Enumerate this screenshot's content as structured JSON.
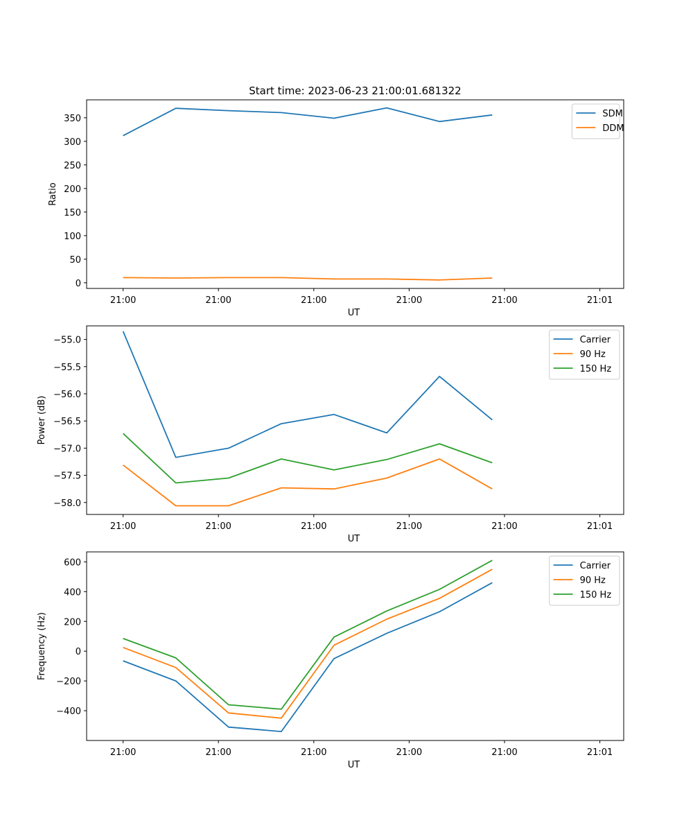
{
  "figure_title": "Start time: 2023-06-23 21:00:01.681322",
  "chart_data": [
    {
      "type": "line",
      "xlabel": "UT",
      "ylabel": "Ratio",
      "x_tick_labels": [
        "21:00",
        "21:00",
        "21:00",
        "21:00",
        "21:00",
        "21:01"
      ],
      "y_ticks": [
        0,
        50,
        100,
        150,
        200,
        250,
        300,
        350
      ],
      "y_tick_labels": [
        "0",
        "50",
        "100",
        "150",
        "200",
        "250",
        "300",
        "350"
      ],
      "xlim": [
        -0.0765,
        1.05
      ],
      "ylim": [
        -12,
        388
      ],
      "x": [
        0,
        0.1106,
        0.2212,
        0.3318,
        0.4424,
        0.553,
        0.6636,
        0.7742
      ],
      "legend_position": "upper right",
      "grid": false,
      "series": [
        {
          "name": "SDM",
          "color": "#1f77b4",
          "values": [
            312,
            370,
            365,
            361,
            349,
            371,
            342,
            356
          ]
        },
        {
          "name": "DDM",
          "color": "#ff7f0e",
          "values": [
            11,
            10,
            11,
            11,
            8,
            8,
            6,
            10
          ]
        }
      ]
    },
    {
      "type": "line",
      "xlabel": "UT",
      "ylabel": "Power (dB)",
      "x_tick_labels": [
        "21:00",
        "21:00",
        "21:00",
        "21:00",
        "21:00",
        "21:01"
      ],
      "y_ticks": [
        -58.0,
        -57.5,
        -57.0,
        -56.5,
        -56.0,
        -55.5,
        -55.0
      ],
      "y_tick_labels": [
        "−58.0",
        "−57.5",
        "−57.0",
        "−56.5",
        "−56.0",
        "−55.5",
        "−55.0"
      ],
      "xlim": [
        -0.0765,
        1.05
      ],
      "ylim": [
        -58.22,
        -54.75
      ],
      "x": [
        0,
        0.1106,
        0.2212,
        0.3318,
        0.4424,
        0.553,
        0.6636,
        0.7742
      ],
      "legend_position": "upper right",
      "grid": false,
      "series": [
        {
          "name": "Carrier",
          "color": "#1f77b4",
          "values": [
            -54.85,
            -57.17,
            -57.0,
            -56.55,
            -56.38,
            -56.72,
            -55.68,
            -56.48
          ]
        },
        {
          "name": "90 Hz",
          "color": "#ff7f0e",
          "values": [
            -57.31,
            -58.06,
            -58.06,
            -57.73,
            -57.75,
            -57.55,
            -57.2,
            -57.75
          ]
        },
        {
          "name": "150 Hz",
          "color": "#2ca02c",
          "values": [
            -56.73,
            -57.64,
            -57.55,
            -57.2,
            -57.4,
            -57.21,
            -56.92,
            -57.27
          ]
        }
      ]
    },
    {
      "type": "line",
      "xlabel": "UT",
      "ylabel": "Frequency (Hz)",
      "x_tick_labels": [
        "21:00",
        "21:00",
        "21:00",
        "21:00",
        "21:00",
        "21:01"
      ],
      "y_ticks": [
        -400,
        -200,
        0,
        200,
        400,
        600
      ],
      "y_tick_labels": [
        "−400",
        "−200",
        "0",
        "200",
        "400",
        "600"
      ],
      "xlim": [
        -0.0765,
        1.05
      ],
      "ylim": [
        -600,
        667
      ],
      "x": [
        0,
        0.1106,
        0.2212,
        0.3318,
        0.4424,
        0.553,
        0.6636,
        0.7742
      ],
      "legend_position": "upper right",
      "grid": false,
      "series": [
        {
          "name": "Carrier",
          "color": "#1f77b4",
          "values": [
            -65,
            -200,
            -510,
            -540,
            -50,
            120,
            265,
            460
          ]
        },
        {
          "name": "90 Hz",
          "color": "#ff7f0e",
          "values": [
            25,
            -110,
            -415,
            -450,
            40,
            215,
            355,
            550
          ]
        },
        {
          "name": "150 Hz",
          "color": "#2ca02c",
          "values": [
            85,
            -45,
            -360,
            -390,
            95,
            270,
            415,
            610
          ]
        }
      ]
    }
  ]
}
